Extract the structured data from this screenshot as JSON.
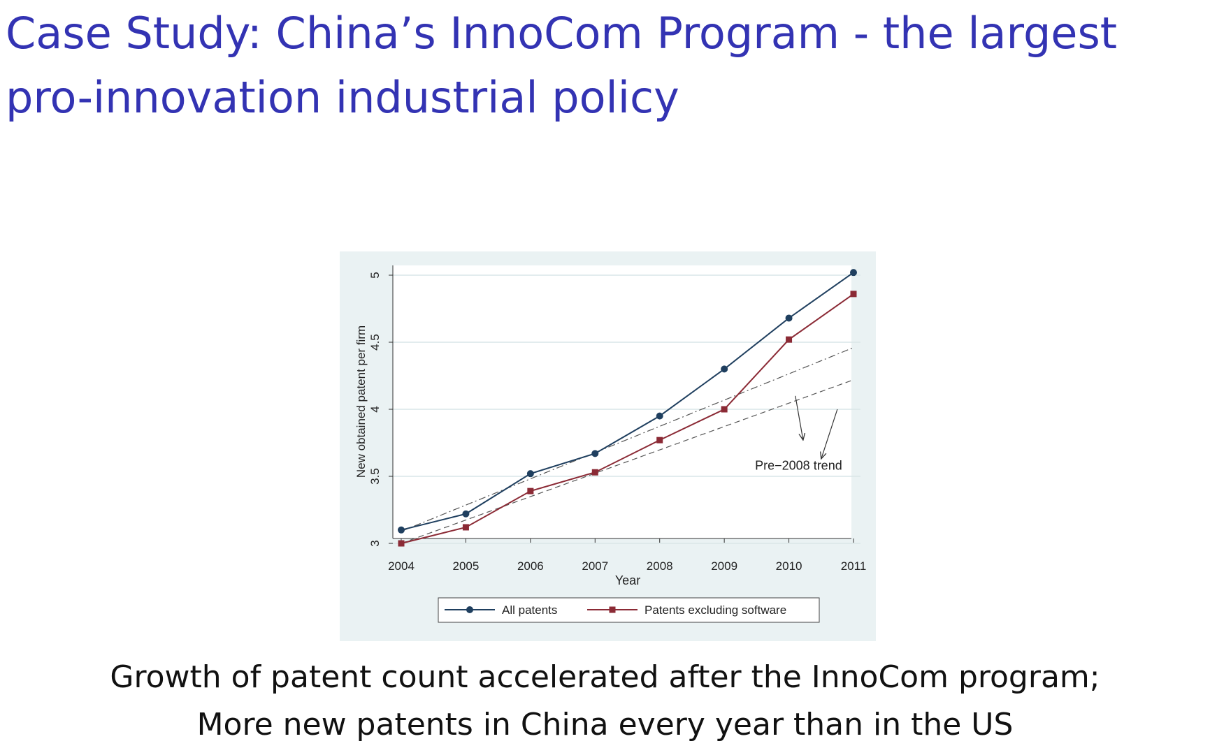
{
  "slide": {
    "title_line1": "Case Study: China’s InnoCom Program - the largest",
    "title_line2": "pro-innovation industrial policy",
    "title_color": "#3333b3",
    "caption_line1": "Growth of patent count accelerated after the InnoCom program;",
    "caption_line2": "More new patents in China every year than in the US"
  },
  "chart_data": {
    "type": "line",
    "title": "",
    "xlabel": "Year",
    "ylabel": "New obtained patent per firm",
    "x": [
      2004,
      2005,
      2006,
      2007,
      2008,
      2009,
      2010,
      2011
    ],
    "xlim": [
      2004,
      2011
    ],
    "ylim": [
      3,
      5
    ],
    "y_ticks": [
      "3",
      "3.5",
      "4",
      "4.5",
      "5"
    ],
    "y_tick_values": [
      3,
      3.5,
      4,
      4.5,
      5
    ],
    "grid": true,
    "legend_position": "bottom",
    "series": [
      {
        "name": "All patents",
        "values": [
          3.1,
          3.22,
          3.52,
          3.67,
          3.95,
          4.3,
          4.68,
          5.02
        ],
        "color": "#1f3f5f",
        "marker": "circle"
      },
      {
        "name": "Patents excluding software",
        "values": [
          3.0,
          3.12,
          3.39,
          3.53,
          3.77,
          4.0,
          4.52,
          4.86
        ],
        "color": "#8b2a35",
        "marker": "square"
      }
    ],
    "trend_lines": [
      {
        "style": "dash-dot",
        "color": "#555555",
        "from": [
          2004,
          3.09
        ],
        "to": [
          2011,
          4.46
        ]
      },
      {
        "style": "dashed",
        "color": "#555555",
        "from": [
          2004,
          3.0
        ],
        "to": [
          2011,
          4.22
        ]
      }
    ],
    "annotation": {
      "text": "Pre−2008 trend",
      "at": [
        2010.15,
        3.55
      ],
      "arrows": [
        {
          "from": [
            2010.1,
            4.1
          ],
          "to": [
            2010.22,
            3.77
          ]
        },
        {
          "from": [
            2010.75,
            4.0
          ],
          "to": [
            2010.5,
            3.63
          ]
        }
      ]
    }
  }
}
